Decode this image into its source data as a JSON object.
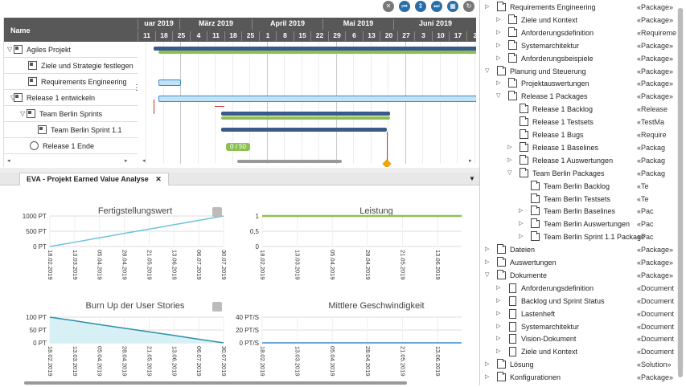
{
  "toolbar": {
    "icons": [
      "collapse-icon",
      "first-icon",
      "expand-icon",
      "last-icon",
      "calendar-icon",
      "refresh-icon"
    ]
  },
  "gantt": {
    "name_header": "Name",
    "months": [
      {
        "label": "uar 2019"
      },
      {
        "label": "März 2019"
      },
      {
        "label": "April 2019"
      },
      {
        "label": "Mai 2019"
      },
      {
        "label": "Juni 2019"
      }
    ],
    "weeks": [
      "11",
      "18",
      "25",
      "4",
      "11",
      "18",
      "25",
      "1",
      "8",
      "15",
      "22",
      "29",
      "6",
      "13",
      "20",
      "27",
      "3",
      "10",
      "17",
      "2"
    ],
    "rows": [
      {
        "label": "Agiles Projekt",
        "toggle": "▽"
      },
      {
        "label": "Ziele und Strategie festlegen",
        "toggle": ""
      },
      {
        "label": "Requirements Engineering",
        "toggle": ""
      },
      {
        "label": "Release 1 entwickeln",
        "toggle": "▽"
      },
      {
        "label": "Team Berlin Sprints",
        "toggle": "▽"
      },
      {
        "label": "Team Berlin Sprint 1.1",
        "toggle": ""
      },
      {
        "label": "Release 1 Ende",
        "toggle": ""
      }
    ],
    "progress_label": "0 / 50"
  },
  "eva": {
    "tab_title": "EVA - Projekt Earned Value Analyse",
    "close": "✕",
    "charts": [
      {
        "title": "Fertigstellungswert"
      },
      {
        "title": "Leistung"
      },
      {
        "title": "Burn Up der User Stories"
      },
      {
        "title": "Mittlere Geschwindigkeit"
      }
    ]
  },
  "chart_data": [
    {
      "type": "line",
      "title": "Fertigstellungswert",
      "x": [
        "18.02.2019",
        "13.03.2019",
        "05.04.2019",
        "28.04.2019",
        "21.05.2019",
        "13.06.2019",
        "06.07.2019",
        "30.07.2019"
      ],
      "yticks": [
        "1000 PT",
        "500 PT",
        "0 PT"
      ],
      "ylim": [
        0,
        1000
      ],
      "series": [
        {
          "values": [
            0,
            140,
            285,
            430,
            570,
            715,
            855,
            1000
          ]
        }
      ]
    },
    {
      "type": "line",
      "title": "Leistung",
      "x": [
        "18.02.2019",
        "13.03.2019",
        "05.04.2019",
        "28.04.2019",
        "21.05.2019",
        "13.06.2019"
      ],
      "yticks": [
        "1",
        "0,5",
        "0"
      ],
      "ylim": [
        0,
        1
      ],
      "series": [
        {
          "values": [
            1,
            1,
            1,
            1,
            1,
            1
          ]
        }
      ]
    },
    {
      "type": "area",
      "title": "Burn Up der User Stories",
      "x": [
        "18.02.2019",
        "13.03.2019",
        "05.04.2019",
        "28.04.2019",
        "21.05.2019",
        "13.06.2019",
        "06.07.2019",
        "30.07.2019"
      ],
      "yticks": [
        "100 PT",
        "50 PT",
        "0 PT"
      ],
      "ylim": [
        0,
        100
      ],
      "series": [
        {
          "values": [
            100,
            86,
            71,
            57,
            43,
            29,
            14,
            0
          ]
        }
      ]
    },
    {
      "type": "line",
      "title": "Mittlere Geschwindigkeit",
      "x": [
        "18.02.2019",
        "13.03.2019",
        "05.04.2019",
        "28.04.2019",
        "21.05.2019",
        "13.06.2019"
      ],
      "yticks": [
        "40 PT/S",
        "20 PT/S",
        "0 PT/S"
      ],
      "ylim": [
        0,
        40
      ],
      "series": [
        {
          "values": [
            0,
            0,
            0,
            0,
            0,
            0
          ]
        }
      ]
    }
  ],
  "tree": [
    {
      "level": 1,
      "toggle": "▷",
      "icon": "folder",
      "label": "Requirements Engineering",
      "type": "«Package»"
    },
    {
      "level": 2,
      "toggle": "▷",
      "icon": "folder",
      "label": "Ziele und Kontext",
      "type": "«Package»"
    },
    {
      "level": 2,
      "toggle": "▷",
      "icon": "folder",
      "label": "Anforderungsdefinition",
      "type": "«Requireme"
    },
    {
      "level": 2,
      "toggle": "▷",
      "icon": "folder",
      "label": "Systemarchitektur",
      "type": "«Package»"
    },
    {
      "level": 2,
      "toggle": "▷",
      "icon": "folder",
      "label": "Anforderungsbeispiele",
      "type": "«Package»"
    },
    {
      "level": 1,
      "toggle": "▽",
      "icon": "folder",
      "label": "Planung und Steuerung",
      "type": "«Package»"
    },
    {
      "level": 2,
      "toggle": "▷",
      "icon": "folder",
      "label": "Projektauswertungen",
      "type": "«Package»"
    },
    {
      "level": 2,
      "toggle": "▽",
      "icon": "folder",
      "label": "Release 1 Packages",
      "type": "«Package»"
    },
    {
      "level": 3,
      "toggle": "",
      "icon": "folder",
      "label": "Release 1 Backlog",
      "type": "«Release"
    },
    {
      "level": 3,
      "toggle": "",
      "icon": "folder",
      "label": "Release 1 Testsets",
      "type": "«TestMa"
    },
    {
      "level": 3,
      "toggle": "",
      "icon": "folder",
      "label": "Release 1 Bugs",
      "type": "«Require"
    },
    {
      "level": 3,
      "toggle": "▷",
      "icon": "folder",
      "label": "Release 1 Baselines",
      "type": "«Packag"
    },
    {
      "level": 3,
      "toggle": "▷",
      "icon": "folder",
      "label": "Release 1 Auswertungen",
      "type": "«Packag"
    },
    {
      "level": 3,
      "toggle": "▽",
      "icon": "folder",
      "label": "Team Berlin Packages",
      "type": "«Packag"
    },
    {
      "level": 4,
      "toggle": "",
      "icon": "folder",
      "label": "Team Berlin Backlog",
      "type": "«Te"
    },
    {
      "level": 4,
      "toggle": "",
      "icon": "folder",
      "label": "Team Berlin Testsets",
      "type": "«Te"
    },
    {
      "level": 4,
      "toggle": "▷",
      "icon": "folder",
      "label": "Team Berlin Baselines",
      "type": "«Pac"
    },
    {
      "level": 4,
      "toggle": "▷",
      "icon": "folder",
      "label": "Team Berlin Auswertungen",
      "type": "«Pac"
    },
    {
      "level": 4,
      "toggle": "▷",
      "icon": "folder",
      "label": "Team Berlin Sprint 1.1 Package",
      "type": "«Pac"
    },
    {
      "level": 1,
      "toggle": "▷",
      "icon": "folder",
      "label": "Dateien",
      "type": "«Package»"
    },
    {
      "level": 1,
      "toggle": "▷",
      "icon": "folder",
      "label": "Auswertungen",
      "type": "«Package»"
    },
    {
      "level": 1,
      "toggle": "▽",
      "icon": "folder",
      "label": "Dokumente",
      "type": "«Package»"
    },
    {
      "level": 2,
      "toggle": "▷",
      "icon": "doc",
      "label": "Anforderungsdefinition",
      "type": "«Document"
    },
    {
      "level": 2,
      "toggle": "▷",
      "icon": "doc",
      "label": "Backlog und Sprint Status",
      "type": "«Document"
    },
    {
      "level": 2,
      "toggle": "▷",
      "icon": "doc",
      "label": "Lastenheft",
      "type": "«Document"
    },
    {
      "level": 2,
      "toggle": "▷",
      "icon": "doc",
      "label": "Systemarchitektur",
      "type": "«Document"
    },
    {
      "level": 2,
      "toggle": "▷",
      "icon": "doc",
      "label": "Vision-Dokument",
      "type": "«Document"
    },
    {
      "level": 2,
      "toggle": "▷",
      "icon": "doc",
      "label": "Ziele und Kontext",
      "type": "«Document"
    },
    {
      "level": 1,
      "toggle": "▷",
      "icon": "folder",
      "label": "Lösung",
      "type": "«Solution»"
    },
    {
      "level": 1,
      "toggle": "▷",
      "icon": "folder",
      "label": "Konfigurationen",
      "type": "«Package»"
    }
  ],
  "colors": {
    "accent": "#2a6ea8",
    "bar_light": "#bfe3f5",
    "bar_green": "#8cc152",
    "milestone": "#f0a500",
    "line_teal": "#6cc4d8"
  }
}
